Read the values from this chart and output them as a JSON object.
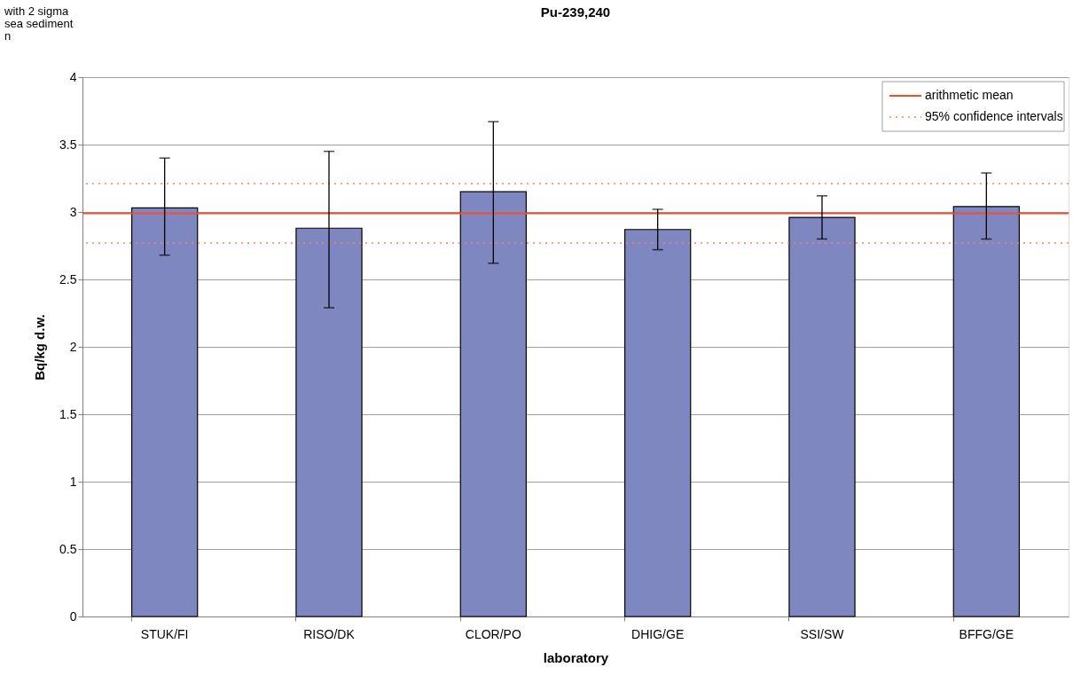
{
  "chart_data": {
    "type": "bar",
    "title": "Pu-239,240",
    "xlabel": "laboratory",
    "ylabel": "Bq/kg d.w.",
    "categories": [
      "STUK/FI",
      "RISO/DK",
      "CLOR/PO",
      "DHIG/GE",
      "SSI/SW",
      "BFFG/GE"
    ],
    "values": [
      3.03,
      2.88,
      3.15,
      2.87,
      2.96,
      3.04
    ],
    "errors": [
      [
        2.68,
        3.4
      ],
      [
        2.29,
        3.45
      ],
      [
        2.62,
        3.67
      ],
      [
        2.72,
        3.02
      ],
      [
        2.8,
        3.12
      ],
      [
        2.8,
        3.29
      ]
    ],
    "color": "#7f87c0",
    "ylim": [
      0,
      4
    ],
    "yticks": [
      0,
      0.5,
      1,
      1.5,
      2,
      2.5,
      3,
      3.5,
      4
    ],
    "grid": "y",
    "ref_lines": [
      {
        "axis": "y",
        "value": 2.99,
        "label": "arithmetic mean",
        "color": "#f04e30",
        "line_style": "solid"
      },
      {
        "axis": "y",
        "value": 3.21,
        "label": "95% confidence intervals",
        "color": "#f4845f",
        "line_style": "dotted"
      },
      {
        "axis": "y",
        "value": 2.77,
        "color": "#f4845f",
        "line_style": "dotted"
      }
    ],
    "legend": "top right",
    "annotations": [
      "with 2 sigma",
      "sea sediment",
      "n"
    ]
  }
}
